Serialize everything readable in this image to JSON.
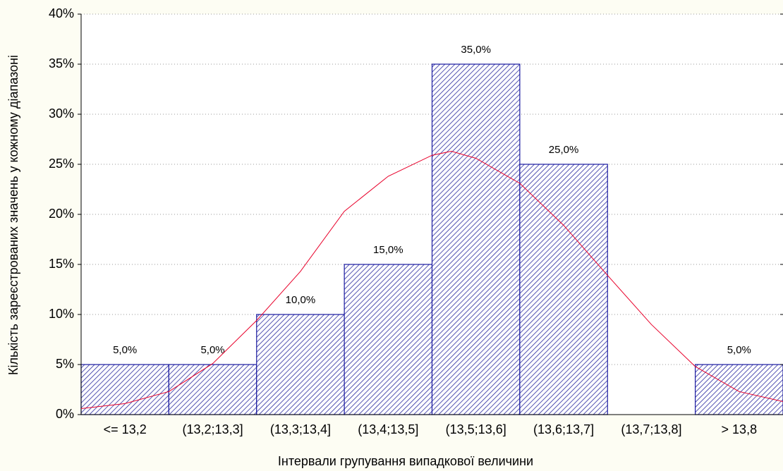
{
  "chart_data": {
    "type": "bar",
    "x_label": "Інтервали групування випадкової величини",
    "y_label": "Кількість зареєстрованих значень у кожному діапазоні",
    "categories": [
      "<= 13,2",
      "(13,2;13,3]",
      "(13,3;13,4]",
      "(13,4;13,5]",
      "(13,5;13,6]",
      "(13,6;13,7]",
      "(13,7;13,8]",
      "> 13,8"
    ],
    "values": [
      5,
      5,
      10,
      15,
      35,
      25,
      0,
      5
    ],
    "value_labels": [
      "5,0%",
      "5,0%",
      "10,0%",
      "15,0%",
      "35,0%",
      "25,0%",
      null,
      "5,0%"
    ],
    "color": "#1a1aa0",
    "ylim": [
      0,
      40
    ],
    "yticks": [
      {
        "value": 0,
        "label": "0%"
      },
      {
        "value": 5,
        "label": "5%"
      },
      {
        "value": 10,
        "label": "10%"
      },
      {
        "value": 15,
        "label": "15%"
      },
      {
        "value": 20,
        "label": "20%"
      },
      {
        "value": 25,
        "label": "25%"
      },
      {
        "value": 30,
        "label": "30%"
      },
      {
        "value": 35,
        "label": "35%"
      },
      {
        "value": 40,
        "label": "40%"
      }
    ],
    "grid": true,
    "curve": {
      "color": "#e8002a",
      "x": [
        0,
        0.5,
        1,
        1.5,
        2,
        2.5,
        3,
        3.5,
        4,
        4.22,
        4.5,
        5,
        5.5,
        6,
        6.5,
        7,
        7.5,
        8
      ],
      "values": [
        0.6,
        1.1,
        2.3,
        5.1,
        9.4,
        14.3,
        20.3,
        23.8,
        25.9,
        26.3,
        25.6,
        23.1,
        18.9,
        13.9,
        9.0,
        4.8,
        2.3,
        1.3
      ]
    }
  }
}
